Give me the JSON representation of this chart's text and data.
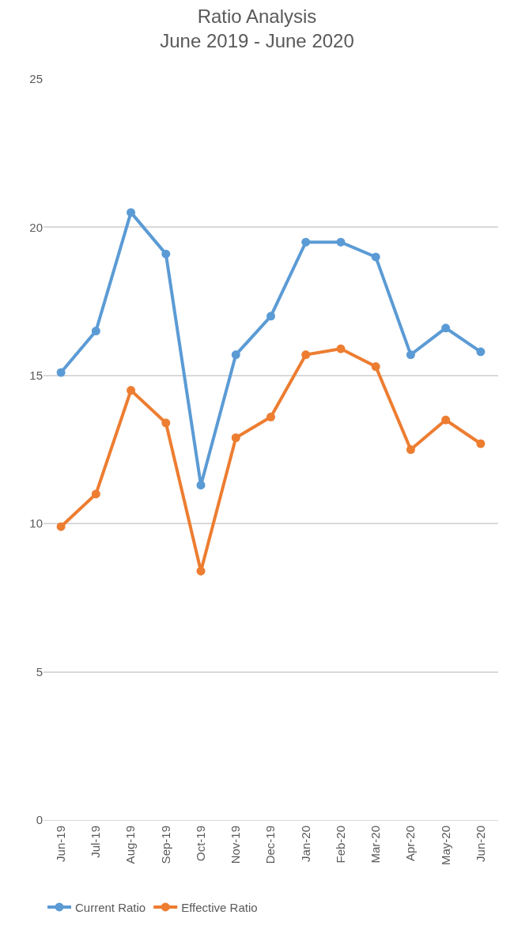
{
  "chart_data": {
    "type": "line",
    "title": "Ratio Analysis",
    "subtitle": "June 2019 - June 2020",
    "categories": [
      "Jun-19",
      "Jul-19",
      "Aug-19",
      "Sep-19",
      "Oct-19",
      "Nov-19",
      "Dec-19",
      "Jan-20",
      "Feb-20",
      "Mar-20",
      "Apr-20",
      "May-20",
      "Jun-20"
    ],
    "series": [
      {
        "name": "Current Ratio",
        "color": "#5b9bd5",
        "values": [
          15.1,
          16.5,
          20.5,
          19.1,
          11.3,
          15.7,
          17.0,
          19.5,
          19.5,
          19.0,
          15.7,
          16.6,
          15.8
        ]
      },
      {
        "name": "Effective Ratio",
        "color": "#ed7d31",
        "values": [
          9.9,
          11.0,
          14.5,
          13.4,
          8.4,
          12.9,
          13.6,
          15.7,
          15.9,
          15.3,
          12.5,
          13.5,
          12.7
        ]
      }
    ],
    "ylim": [
      0,
      25
    ],
    "yticks": [
      0,
      5,
      10,
      15,
      20,
      25
    ],
    "grid": "y",
    "legend": "bottom",
    "marker": "circle",
    "line_style": "solid"
  }
}
